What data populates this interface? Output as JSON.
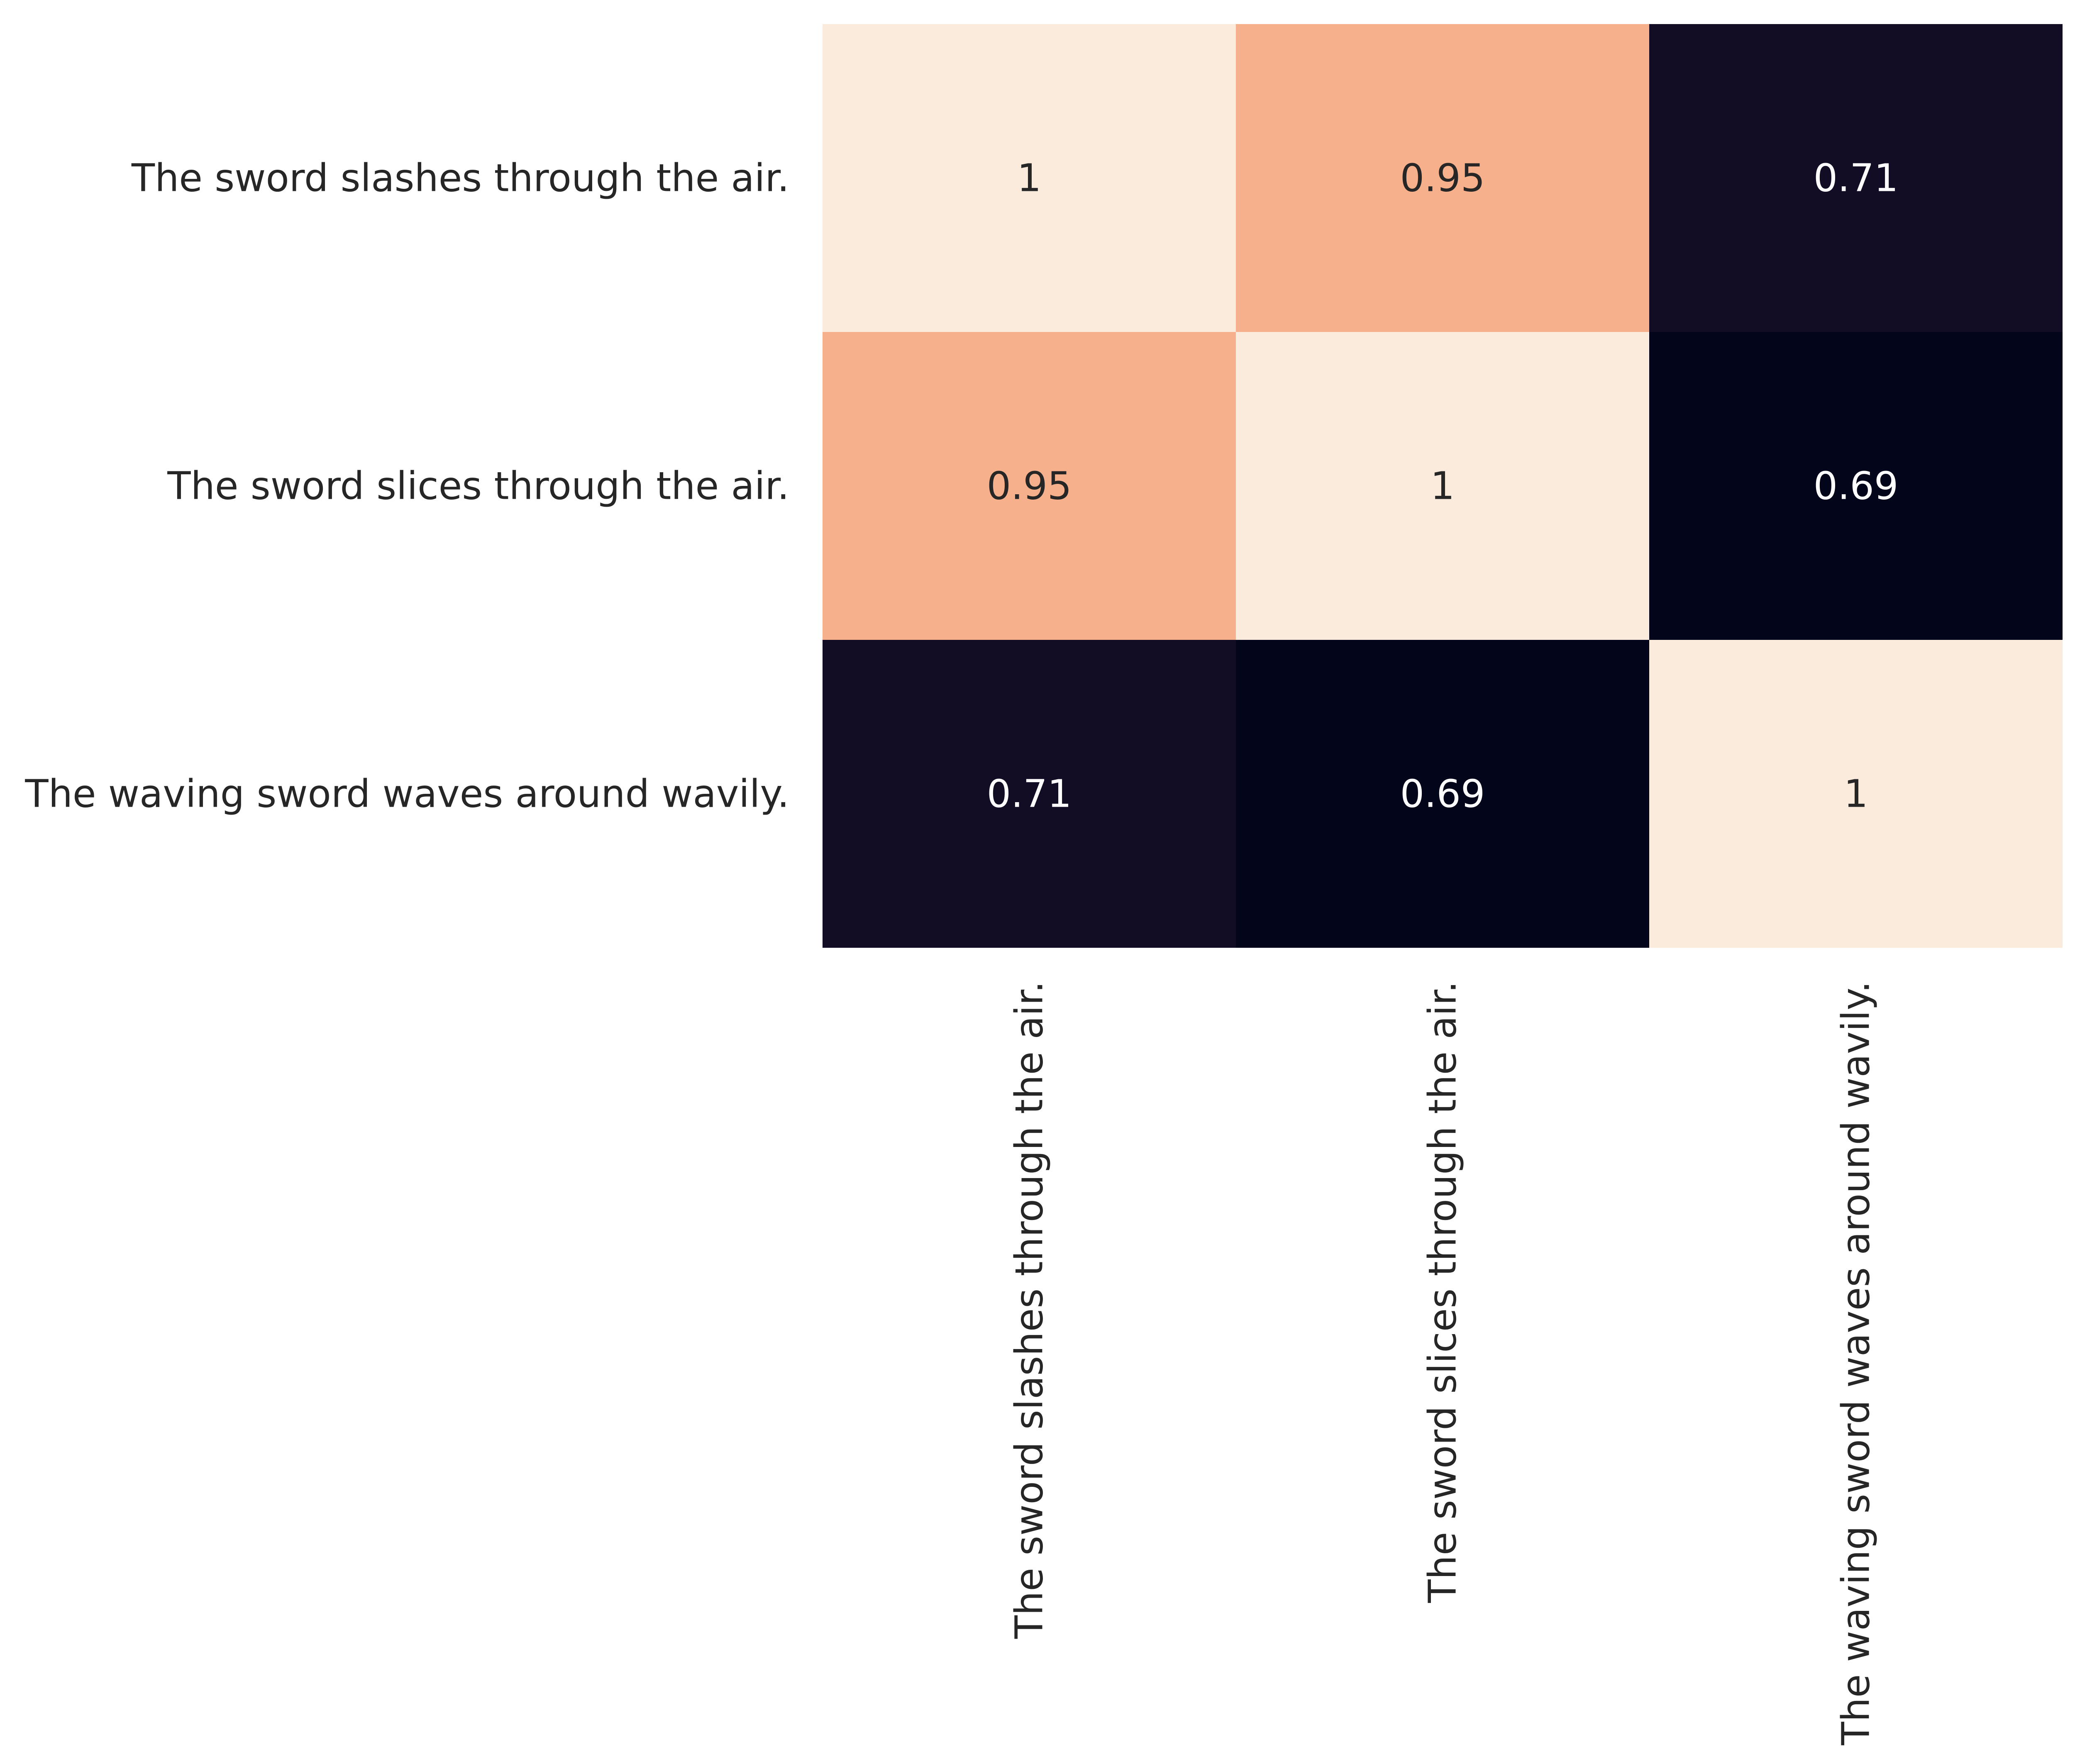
{
  "chart_data": {
    "type": "heatmap",
    "title": "",
    "xlabel": "",
    "ylabel": "",
    "x_categories": [
      "The sword slashes through the air.",
      "The sword slices through the air.",
      "The waving sword waves around wavily."
    ],
    "y_categories": [
      "The sword slashes through the air.",
      "The sword slices through the air.",
      "The waving sword waves around wavily."
    ],
    "values": [
      [
        1,
        0.95,
        0.71
      ],
      [
        0.95,
        1,
        0.69
      ],
      [
        0.71,
        0.69,
        1
      ]
    ],
    "cell_labels": [
      [
        "1",
        "0.95",
        "0.71"
      ],
      [
        "0.95",
        "1",
        "0.69"
      ],
      [
        "0.71",
        "0.69",
        "1"
      ]
    ],
    "colorbar": false,
    "grid": false,
    "colors": {
      "1": "#faebdd",
      "0.95": "#f6b08c",
      "0.71": "#120d24",
      "0.69": "#03051a",
      "text_dark": "#262626",
      "text_light": "#ffffff"
    }
  }
}
